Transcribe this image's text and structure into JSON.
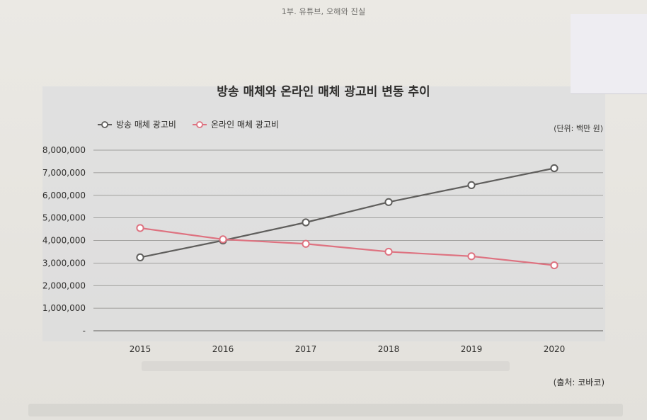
{
  "header": {
    "running_title": "1부. 유튜브, 오해와 진실"
  },
  "notes": {
    "unit": "(단위: 백만 원)",
    "source": "(출처: 코바코)"
  },
  "colors": {
    "broadcast": "#5f5e5c",
    "online": "#de7280",
    "grid": "#8c8b88",
    "text": "#2f2e2c"
  },
  "chart_data": {
    "type": "line",
    "title": "방송 매체와 온라인 매체 광고비 변동 추이",
    "xlabel": "",
    "ylabel": "",
    "x": [
      "2015",
      "2016",
      "2017",
      "2018",
      "2019",
      "2020"
    ],
    "series": [
      {
        "name": "방송 매체 광고비",
        "color": "#5f5e5c",
        "values": [
          3250000,
          4000000,
          4800000,
          5700000,
          6450000,
          7200000
        ]
      },
      {
        "name": "온라인 매체 광고비",
        "color": "#de7280",
        "values": [
          4550000,
          4050000,
          3850000,
          3500000,
          3300000,
          2900000
        ]
      }
    ],
    "ylim": [
      0,
      8000000
    ],
    "yticks": [
      {
        "value": 8000000,
        "label": "8,000,000"
      },
      {
        "value": 7000000,
        "label": "7,000,000"
      },
      {
        "value": 6000000,
        "label": "6,000,000"
      },
      {
        "value": 5000000,
        "label": "5,000,000"
      },
      {
        "value": 4000000,
        "label": "4,000,000"
      },
      {
        "value": 3000000,
        "label": "3,000,000"
      },
      {
        "value": 2000000,
        "label": "2,000,000"
      },
      {
        "value": 1000000,
        "label": "1,000,000"
      },
      {
        "value": 0,
        "label": "-"
      }
    ],
    "grid": true,
    "legend": "top-left"
  }
}
